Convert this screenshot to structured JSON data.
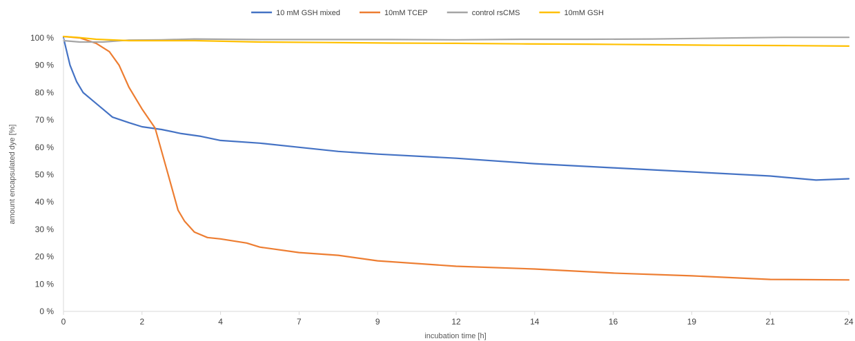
{
  "chart_data": {
    "type": "line",
    "xlabel": "incubation time [h]",
    "ylabel": "amount  encapsulated dye [%]",
    "xlim": [
      0,
      24
    ],
    "ylim": [
      0,
      100
    ],
    "x_tick_labels": [
      "0",
      "2",
      "4",
      "7",
      "9",
      "12",
      "14",
      "16",
      "19",
      "21",
      "24"
    ],
    "x_tick_values": [
      0,
      2.4,
      4.8,
      7.2,
      9.6,
      12,
      14.4,
      16.8,
      19.2,
      21.6,
      24
    ],
    "y_tick_labels": [
      "0 %",
      "10 %",
      "20 %",
      "30 %",
      "40 %",
      "50 %",
      "60 %",
      "70 %",
      "80 %",
      "90 %",
      "100 %"
    ],
    "y_tick_values": [
      0,
      10,
      20,
      30,
      40,
      50,
      60,
      70,
      80,
      90,
      100
    ],
    "grid": false,
    "legend_position": "top-center",
    "series": [
      {
        "name": "10 mM GSH mixed",
        "color": "#4472c4",
        "x": [
          0,
          0.2,
          0.4,
          0.6,
          0.9,
          1.2,
          1.5,
          2.0,
          2.4,
          3.0,
          3.6,
          4.2,
          4.8,
          6.0,
          7.2,
          8.4,
          9.6,
          12.0,
          14.4,
          16.8,
          19.2,
          21.6,
          23.0,
          24.0
        ],
        "y": [
          100,
          90,
          84,
          80,
          77,
          74,
          71,
          69,
          67.5,
          66.5,
          65,
          64,
          62.5,
          61.5,
          60,
          58.5,
          57.5,
          56,
          54,
          52.5,
          51,
          49.5,
          48,
          48.5
        ]
      },
      {
        "name": "10mM TCEP",
        "color": "#ed7d31",
        "x": [
          0,
          0.5,
          1.0,
          1.4,
          1.7,
          2.0,
          2.4,
          2.8,
          3.2,
          3.5,
          3.7,
          4.0,
          4.4,
          4.8,
          5.6,
          6.0,
          7.2,
          8.4,
          9.6,
          12.0,
          14.4,
          16.8,
          19.2,
          21.6,
          24.0
        ],
        "y": [
          100.5,
          100,
          98,
          95,
          90,
          82,
          74,
          67,
          50,
          37,
          33,
          29,
          27,
          26.5,
          25,
          23.5,
          21.5,
          20.5,
          18.5,
          16.5,
          15.5,
          14,
          13,
          11.7,
          11.5
        ]
      },
      {
        "name": "control rsCMS",
        "color": "#a5a5a5",
        "x": [
          0,
          0.5,
          1.2,
          2.0,
          3.0,
          4.0,
          6.0,
          8.0,
          10.0,
          12.0,
          14.0,
          16.0,
          18.0,
          20.0,
          22.0,
          24.0
        ],
        "y": [
          99,
          98.5,
          98.5,
          99.2,
          99.3,
          99.6,
          99.4,
          99.4,
          99.4,
          99.3,
          99.5,
          99.5,
          99.6,
          99.9,
          100.2,
          100.2
        ]
      },
      {
        "name": "10mM GSH",
        "color": "#ffc000",
        "x": [
          0,
          0.4,
          1.0,
          2.0,
          3.0,
          4.0,
          6.0,
          8.0,
          10.0,
          12.0,
          14.0,
          16.0,
          18.0,
          20.0,
          22.0,
          24.0
        ],
        "y": [
          100.5,
          100.2,
          99.5,
          99,
          99,
          99,
          98.5,
          98.3,
          98.1,
          98,
          97.8,
          97.7,
          97.5,
          97.3,
          97.2,
          97
        ]
      }
    ]
  }
}
